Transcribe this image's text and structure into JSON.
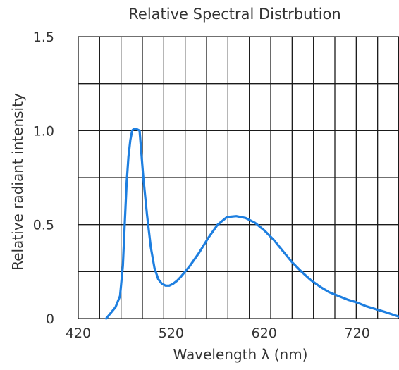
{
  "chart_data": {
    "type": "line",
    "title": "Relative Spectral Distrbution",
    "xlabel": "Wavelength  λ (nm)",
    "ylabel": "Relative radiant intensity",
    "xlim": [
      420,
      765
    ],
    "ylim": [
      0,
      1.5
    ],
    "x_ticks": [
      {
        "value": 420,
        "label": "420"
      },
      {
        "value": 520,
        "label": "520"
      },
      {
        "value": 620,
        "label": "620"
      },
      {
        "value": 720,
        "label": "720"
      }
    ],
    "y_ticks": [
      {
        "value": 0,
        "label": "0"
      },
      {
        "value": 0.5,
        "label": "0.5"
      },
      {
        "value": 1.0,
        "label": "1.0"
      },
      {
        "value": 1.5,
        "label": "1.5"
      }
    ],
    "grid": true,
    "grid_x_step": 23,
    "grid_y_step": 0.25,
    "colors": {
      "series": "#1e7fe0",
      "grid": "#1a1a1a"
    },
    "series": [
      {
        "x": [
          450,
          460,
          465,
          468,
          470,
          472,
          474,
          476,
          478,
          480,
          482,
          486,
          490,
          494,
          498,
          502,
          506,
          510,
          514,
          518,
          522,
          526,
          530,
          540,
          550,
          560,
          570,
          580,
          590,
          600,
          610,
          620,
          630,
          640,
          650,
          660,
          670,
          680,
          690,
          700,
          710,
          720,
          730,
          740,
          750,
          765
        ],
        "y": [
          0.0,
          0.06,
          0.12,
          0.28,
          0.5,
          0.72,
          0.86,
          0.95,
          1.0,
          1.01,
          1.01,
          1.0,
          0.75,
          0.55,
          0.38,
          0.27,
          0.21,
          0.185,
          0.175,
          0.175,
          0.185,
          0.2,
          0.22,
          0.28,
          0.35,
          0.43,
          0.5,
          0.54,
          0.545,
          0.535,
          0.51,
          0.47,
          0.42,
          0.36,
          0.3,
          0.25,
          0.205,
          0.17,
          0.14,
          0.12,
          0.1,
          0.085,
          0.065,
          0.05,
          0.035,
          0.01
        ]
      }
    ]
  }
}
